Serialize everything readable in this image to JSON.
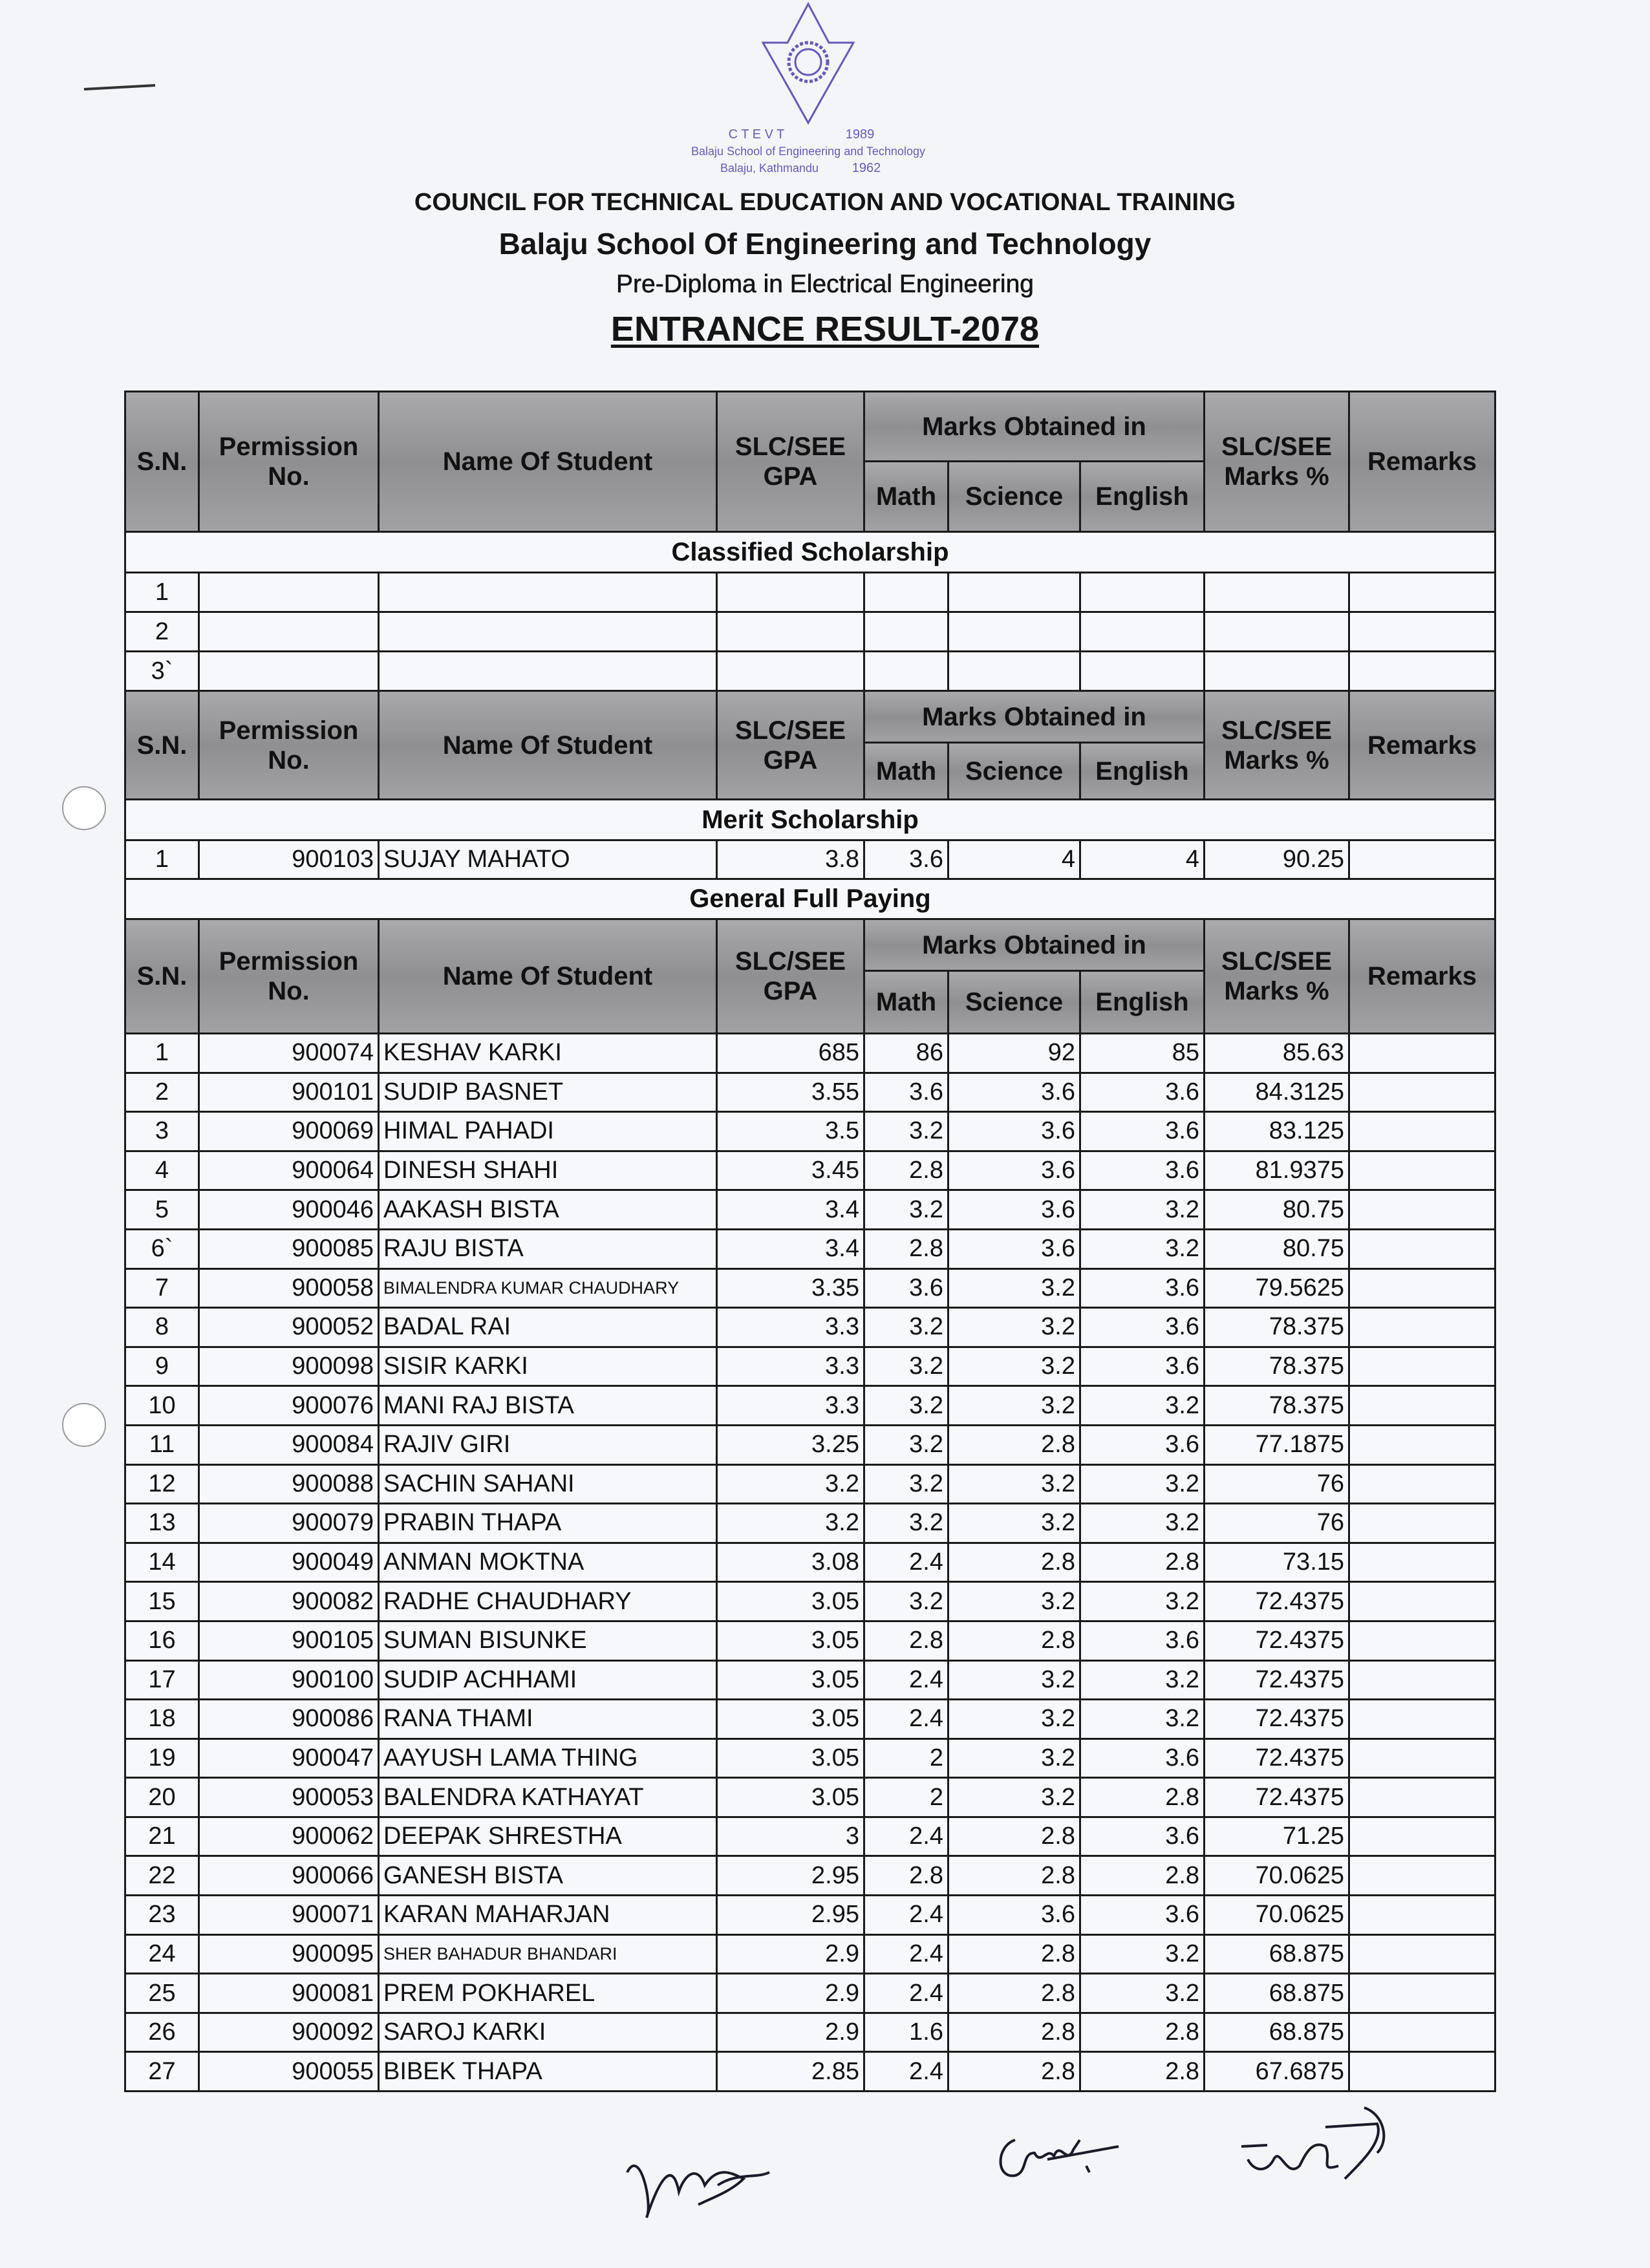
{
  "header": {
    "council": "COUNCIL FOR TECHNICAL EDUCATION AND VOCATIONAL TRAINING",
    "school": "Balaju School Of Engineering and Technology",
    "program": "Pre-Diploma in Electrical Engineering",
    "title": "ENTRANCE RESULT-2078"
  },
  "stamp": {
    "text_ring": "Balaju School of Engineering and Technology",
    "place": "Balaju, Kathmandu",
    "year_top": "1989",
    "year_bottom": "1962",
    "org": "C T E V T",
    "color": "#4b3fb0"
  },
  "columns": {
    "sn": "S.N.",
    "permission": "Permission No.",
    "name": "Name Of Student",
    "gpa": "SLC/SEE GPA",
    "marks_group": "Marks Obtained in",
    "math": "Math",
    "science": "Science",
    "english": "English",
    "percent": "SLC/SEE Marks %",
    "remarks": "Remarks"
  },
  "sections": {
    "classified": {
      "title": "Classified Scholarship",
      "rows": [
        {
          "sn": "1"
        },
        {
          "sn": "2"
        },
        {
          "sn": "3`"
        }
      ]
    },
    "merit": {
      "title": "Merit Scholarship",
      "rows": [
        {
          "sn": "1",
          "perm": "900103",
          "name": "SUJAY MAHATO",
          "gpa": "3.8",
          "math": "3.6",
          "science": "4",
          "english": "4",
          "pct": "90.25",
          "remarks": ""
        }
      ]
    },
    "general": {
      "title": "General Full Paying",
      "rows": [
        {
          "sn": "1",
          "perm": "900074",
          "name": "KESHAV KARKI",
          "gpa": "685",
          "math": "86",
          "science": "92",
          "english": "85",
          "pct": "85.63",
          "remarks": ""
        },
        {
          "sn": "2",
          "perm": "900101",
          "name": "SUDIP BASNET",
          "gpa": "3.55",
          "math": "3.6",
          "science": "3.6",
          "english": "3.6",
          "pct": "84.3125",
          "remarks": ""
        },
        {
          "sn": "3",
          "perm": "900069",
          "name": "HIMAL PAHADI",
          "gpa": "3.5",
          "math": "3.2",
          "science": "3.6",
          "english": "3.6",
          "pct": "83.125",
          "remarks": ""
        },
        {
          "sn": "4",
          "perm": "900064",
          "name": "DINESH SHAHI",
          "gpa": "3.45",
          "math": "2.8",
          "science": "3.6",
          "english": "3.6",
          "pct": "81.9375",
          "remarks": ""
        },
        {
          "sn": "5",
          "perm": "900046",
          "name": "AAKASH BISTA",
          "gpa": "3.4",
          "math": "3.2",
          "science": "3.6",
          "english": "3.2",
          "pct": "80.75",
          "remarks": ""
        },
        {
          "sn": "6`",
          "perm": "900085",
          "name": "RAJU BISTA",
          "gpa": "3.4",
          "math": "2.8",
          "science": "3.6",
          "english": "3.2",
          "pct": "80.75",
          "remarks": ""
        },
        {
          "sn": "7",
          "perm": "900058",
          "name": "BIMALENDRA KUMAR CHAUDHARY",
          "gpa": "3.35",
          "math": "3.6",
          "science": "3.2",
          "english": "3.6",
          "pct": "79.5625",
          "remarks": ""
        },
        {
          "sn": "8",
          "perm": "900052",
          "name": "BADAL RAI",
          "gpa": "3.3",
          "math": "3.2",
          "science": "3.2",
          "english": "3.6",
          "pct": "78.375",
          "remarks": ""
        },
        {
          "sn": "9",
          "perm": "900098",
          "name": "SISIR KARKI",
          "gpa": "3.3",
          "math": "3.2",
          "science": "3.2",
          "english": "3.6",
          "pct": "78.375",
          "remarks": ""
        },
        {
          "sn": "10",
          "perm": "900076",
          "name": "MANI RAJ BISTA",
          "gpa": "3.3",
          "math": "3.2",
          "science": "3.2",
          "english": "3.2",
          "pct": "78.375",
          "remarks": ""
        },
        {
          "sn": "11",
          "perm": "900084",
          "name": "RAJIV GIRI",
          "gpa": "3.25",
          "math": "3.2",
          "science": "2.8",
          "english": "3.6",
          "pct": "77.1875",
          "remarks": ""
        },
        {
          "sn": "12",
          "perm": "900088",
          "name": "SACHIN SAHANI",
          "gpa": "3.2",
          "math": "3.2",
          "science": "3.2",
          "english": "3.2",
          "pct": "76",
          "remarks": ""
        },
        {
          "sn": "13",
          "perm": "900079",
          "name": "PRABIN THAPA",
          "gpa": "3.2",
          "math": "3.2",
          "science": "3.2",
          "english": "3.2",
          "pct": "76",
          "remarks": ""
        },
        {
          "sn": "14",
          "perm": "900049",
          "name": "ANMAN MOKTNA",
          "gpa": "3.08",
          "math": "2.4",
          "science": "2.8",
          "english": "2.8",
          "pct": "73.15",
          "remarks": ""
        },
        {
          "sn": "15",
          "perm": "900082",
          "name": "RADHE CHAUDHARY",
          "gpa": "3.05",
          "math": "3.2",
          "science": "3.2",
          "english": "3.2",
          "pct": "72.4375",
          "remarks": ""
        },
        {
          "sn": "16",
          "perm": "900105",
          "name": "SUMAN BISUNKE",
          "gpa": "3.05",
          "math": "2.8",
          "science": "2.8",
          "english": "3.6",
          "pct": "72.4375",
          "remarks": ""
        },
        {
          "sn": "17",
          "perm": "900100",
          "name": "SUDIP ACHHAMI",
          "gpa": "3.05",
          "math": "2.4",
          "science": "3.2",
          "english": "3.2",
          "pct": "72.4375",
          "remarks": ""
        },
        {
          "sn": "18",
          "perm": "900086",
          "name": "RANA THAMI",
          "gpa": "3.05",
          "math": "2.4",
          "science": "3.2",
          "english": "3.2",
          "pct": "72.4375",
          "remarks": ""
        },
        {
          "sn": "19",
          "perm": "900047",
          "name": "AAYUSH LAMA THING",
          "gpa": "3.05",
          "math": "2",
          "science": "3.2",
          "english": "3.6",
          "pct": "72.4375",
          "remarks": ""
        },
        {
          "sn": "20",
          "perm": "900053",
          "name": "BALENDRA KATHAYAT",
          "gpa": "3.05",
          "math": "2",
          "science": "3.2",
          "english": "2.8",
          "pct": "72.4375",
          "remarks": ""
        },
        {
          "sn": "21",
          "perm": "900062",
          "name": "DEEPAK SHRESTHA",
          "gpa": "3",
          "math": "2.4",
          "science": "2.8",
          "english": "3.6",
          "pct": "71.25",
          "remarks": ""
        },
        {
          "sn": "22",
          "perm": "900066",
          "name": "GANESH BISTA",
          "gpa": "2.95",
          "math": "2.8",
          "science": "2.8",
          "english": "2.8",
          "pct": "70.0625",
          "remarks": ""
        },
        {
          "sn": "23",
          "perm": "900071",
          "name": "KARAN MAHARJAN",
          "gpa": "2.95",
          "math": "2.4",
          "science": "3.6",
          "english": "3.6",
          "pct": "70.0625",
          "remarks": ""
        },
        {
          "sn": "24",
          "perm": "900095",
          "name": "SHER BAHADUR BHANDARI",
          "gpa": "2.9",
          "math": "2.4",
          "science": "2.8",
          "english": "3.2",
          "pct": "68.875",
          "remarks": ""
        },
        {
          "sn": "25",
          "perm": "900081",
          "name": "PREM POKHAREL",
          "gpa": "2.9",
          "math": "2.4",
          "science": "2.8",
          "english": "3.2",
          "pct": "68.875",
          "remarks": ""
        },
        {
          "sn": "26",
          "perm": "900092",
          "name": "SAROJ KARKI",
          "gpa": "2.9",
          "math": "1.6",
          "science": "2.8",
          "english": "2.8",
          "pct": "68.875",
          "remarks": ""
        },
        {
          "sn": "27",
          "perm": "900055",
          "name": "BIBEK THAPA",
          "gpa": "2.85",
          "math": "2.4",
          "science": "2.8",
          "english": "2.8",
          "pct": "67.6875",
          "remarks": ""
        }
      ]
    }
  },
  "signatures": [
    "signature-1",
    "signature-2",
    "signature-3"
  ]
}
